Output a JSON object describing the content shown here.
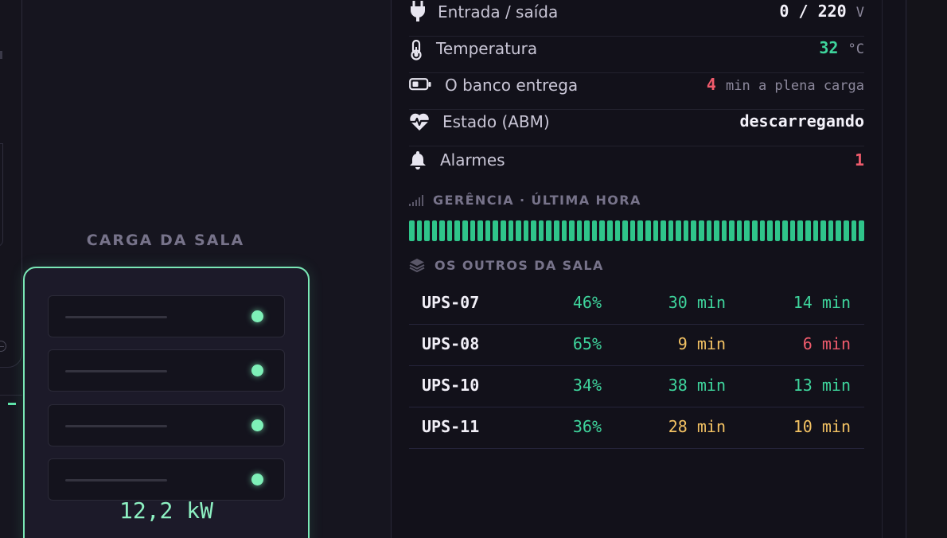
{
  "colors": {
    "accent": "#5ee3a8",
    "green": "#3ed49c",
    "amber": "#f3c263",
    "red": "#ef5b6c",
    "panel_bg": "#12111a",
    "page_bg": "#16151f"
  },
  "room": {
    "title": "CARGA DA SALA",
    "power": "12,2 kW",
    "slots": [
      {
        "status": "ok"
      },
      {
        "status": "ok"
      },
      {
        "status": "ok"
      },
      {
        "status": "ok"
      }
    ]
  },
  "detail": {
    "rows": [
      {
        "icon": "plug-icon",
        "label": "Entrada / saída",
        "value": "0 / 220",
        "unit": "V"
      },
      {
        "icon": "thermometer-icon",
        "label": "Temperatura",
        "value": "32",
        "unit": "°C"
      },
      {
        "icon": "battery-icon",
        "label": "O banco entrega",
        "value": "4",
        "unit": "min a plena carga"
      },
      {
        "icon": "heart-pulse-icon",
        "label": "Estado (ABM)",
        "value": "descarregando",
        "unit": ""
      },
      {
        "icon": "bell-icon",
        "label": "Alarmes",
        "value": "1",
        "unit": ""
      }
    ],
    "history": {
      "icon": "signal-bars-icon",
      "title": "GERÊNCIA · ÚLTIMA HORA",
      "bar_count": 60,
      "status": "all-ok"
    },
    "others": {
      "icon": "layers-icon",
      "title": "OS OUTROS DA SALA",
      "rows": [
        {
          "name": "UPS-07",
          "load": "46%",
          "runtime": "30 min",
          "other": "14 min",
          "load_color": "green",
          "runtime_color": "green",
          "other_color": "green"
        },
        {
          "name": "UPS-08",
          "load": "65%",
          "runtime": "9 min",
          "other": "6 min",
          "load_color": "green",
          "runtime_color": "amber",
          "other_color": "red"
        },
        {
          "name": "UPS-10",
          "load": "34%",
          "runtime": "38 min",
          "other": "13 min",
          "load_color": "green",
          "runtime_color": "green",
          "other_color": "green"
        },
        {
          "name": "UPS-11",
          "load": "36%",
          "runtime": "28 min",
          "other": "10 min",
          "load_color": "green",
          "runtime_color": "amber",
          "other_color": "amber"
        }
      ]
    }
  }
}
